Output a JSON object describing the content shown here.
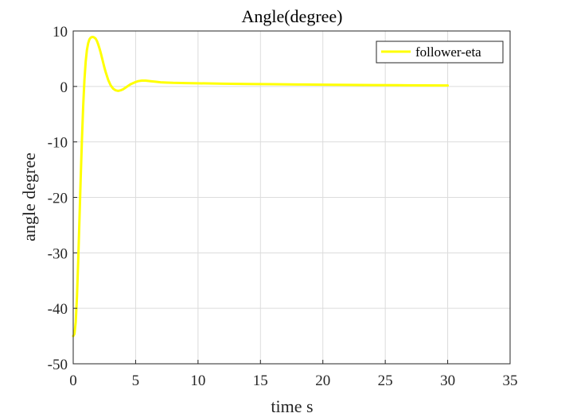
{
  "chart_data": {
    "type": "line",
    "title": "Angle(degree)",
    "xlabel": "time s",
    "ylabel": "angle degree",
    "xlim": [
      0,
      35
    ],
    "ylim": [
      -50,
      10
    ],
    "xticks": [
      0,
      5,
      10,
      15,
      20,
      25,
      30,
      35
    ],
    "yticks": [
      -50,
      -40,
      -30,
      -20,
      -10,
      0,
      10
    ],
    "xtick_labels": [
      "0",
      "5",
      "10",
      "15",
      "20",
      "25",
      "30",
      "35"
    ],
    "ytick_labels": [
      "-50",
      "-40",
      "-30",
      "-20",
      "-10",
      "0",
      "10"
    ],
    "grid": true,
    "legend_position": "top-right",
    "series": [
      {
        "name": "follower-eta",
        "color": "#ffff00",
        "x": [
          0,
          0.1,
          0.2,
          0.3,
          0.4,
          0.5,
          0.6,
          0.7,
          0.8,
          0.9,
          1.0,
          1.1,
          1.2,
          1.3,
          1.4,
          1.5,
          1.6,
          1.7,
          1.8,
          1.9,
          2.0,
          2.1,
          2.2,
          2.3,
          2.4,
          2.5,
          2.6,
          2.8,
          3.0,
          3.2,
          3.4,
          3.6,
          3.8,
          4.0,
          4.2,
          4.4,
          4.6,
          4.8,
          5.0,
          5.2,
          5.5,
          5.8,
          6.2,
          6.6,
          7.0,
          7.5,
          8.0,
          9.0,
          10.0,
          12.0,
          14.0,
          16.0,
          18.0,
          20.0,
          22.0,
          24.0,
          26.0,
          28.0,
          30.0
        ],
        "y": [
          -45.0,
          -44.6,
          -42.5,
          -38.0,
          -31.5,
          -24.0,
          -16.5,
          -9.5,
          -3.5,
          1.2,
          4.5,
          6.6,
          7.8,
          8.5,
          8.8,
          8.9,
          8.9,
          8.8,
          8.6,
          8.2,
          7.6,
          6.9,
          6.1,
          5.2,
          4.3,
          3.4,
          2.6,
          1.2,
          0.2,
          -0.4,
          -0.7,
          -0.8,
          -0.7,
          -0.5,
          -0.2,
          0.1,
          0.4,
          0.6,
          0.8,
          0.95,
          1.05,
          1.05,
          0.95,
          0.85,
          0.75,
          0.7,
          0.65,
          0.6,
          0.57,
          0.5,
          0.45,
          0.4,
          0.36,
          0.32,
          0.28,
          0.25,
          0.22,
          0.19,
          0.17
        ]
      }
    ]
  }
}
